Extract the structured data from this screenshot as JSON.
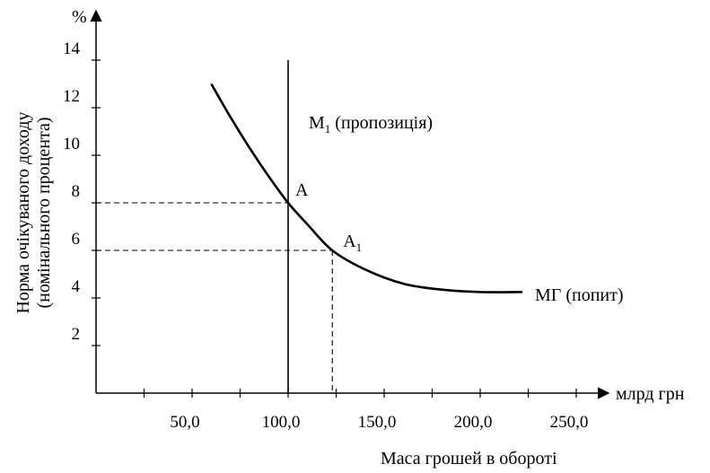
{
  "chart_data": {
    "type": "line",
    "title": "",
    "x_unit": "млрд грн",
    "xlabel": "Маса грошей в обороті",
    "y_unit": "%",
    "ylabel_line1": "Норма очікуваного доходу",
    "ylabel_line2": "(номінального процента)",
    "xlim": [
      0,
      275
    ],
    "ylim": [
      0,
      14
    ],
    "x_ticks": [
      25,
      50,
      75,
      100,
      125,
      150,
      175,
      200,
      225,
      250
    ],
    "x_tick_labels": [
      {
        "value": 50,
        "label": "50,0"
      },
      {
        "value": 100,
        "label": "100,0"
      },
      {
        "value": 150,
        "label": "150,0"
      },
      {
        "value": 200,
        "label": "200,0"
      },
      {
        "value": 250,
        "label": "250,0"
      }
    ],
    "y_ticks": [
      2,
      4,
      6,
      8,
      10,
      12,
      14
    ],
    "y_tick_labels": [
      "2",
      "4",
      "6",
      "8",
      "10",
      "12",
      "14"
    ],
    "grid": false,
    "series": [
      {
        "name": "МГ (попит)",
        "label_main": "МГ",
        "label_rest": " (попит)",
        "points": [
          [
            60,
            13
          ],
          [
            70,
            11.6
          ],
          [
            80,
            10.3
          ],
          [
            90,
            9.1
          ],
          [
            100,
            8
          ],
          [
            110,
            7.1
          ],
          [
            123,
            6
          ],
          [
            140,
            5.2
          ],
          [
            160,
            4.6
          ],
          [
            180,
            4.35
          ],
          [
            200,
            4.25
          ],
          [
            222,
            4.25
          ]
        ]
      },
      {
        "name": "M1 (пропозиція)",
        "label_main": "M",
        "label_sub": "1",
        "label_rest": " (пропозиція)",
        "points": [
          [
            100,
            0
          ],
          [
            100,
            14
          ]
        ]
      }
    ],
    "points": [
      {
        "label": "A",
        "sub": "",
        "x": 100,
        "y": 8
      },
      {
        "label": "A",
        "sub": "1",
        "x": 123,
        "y": 6
      }
    ]
  }
}
